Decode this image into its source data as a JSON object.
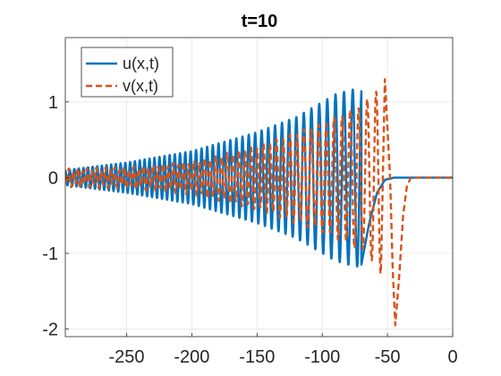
{
  "chart_data": {
    "type": "line",
    "title": "t=10",
    "xlabel": "",
    "ylabel": "",
    "xlim": [
      -297,
      0
    ],
    "ylim": [
      -2.1,
      1.85
    ],
    "xticks": [
      -250,
      -200,
      -150,
      -100,
      -50,
      0
    ],
    "xtick_labels": [
      "-250",
      "-200",
      "-150",
      "-100",
      "-50",
      "0"
    ],
    "yticks": [
      -2,
      -1,
      0,
      1
    ],
    "ytick_labels": [
      "-2",
      "-1",
      "0",
      "1"
    ],
    "grid": true,
    "legend_position": "top-left",
    "series": [
      {
        "name": "u(x,t)",
        "color": "#0072BD",
        "style": "solid",
        "envelope": {
          "x": [
            -297,
            -250,
            -200,
            -150,
            -120,
            -100,
            -90,
            -80,
            -75,
            -70
          ],
          "amplitude": [
            0.1,
            0.2,
            0.35,
            0.6,
            0.8,
            1.0,
            1.1,
            1.15,
            1.17,
            1.18
          ]
        },
        "wavelength_left": 3.5,
        "wavelength_right": 7.0,
        "front": [
          {
            "x": -70,
            "y": -1.15
          },
          {
            "x": -64,
            "y": -0.6
          },
          {
            "x": -58,
            "y": -0.2
          },
          {
            "x": -52,
            "y": -0.03
          },
          {
            "x": -45,
            "y": 0
          },
          {
            "x": 0,
            "y": 0
          }
        ]
      },
      {
        "name": "v(x,t)",
        "color": "#D95319",
        "style": "dashed",
        "envelope": {
          "x": [
            -297,
            -250,
            -200,
            -150,
            -100,
            -70,
            -60,
            -55
          ],
          "amplitude": [
            0.1,
            0.12,
            0.2,
            0.4,
            0.7,
            0.95,
            1.1,
            1.3
          ]
        },
        "wavelength_left": 3.5,
        "wavelength_right": 7.0,
        "front": [
          {
            "x": -52,
            "y": 1.3
          },
          {
            "x": -48,
            "y": 0.0
          },
          {
            "x": -46,
            "y": -1.2
          },
          {
            "x": -44,
            "y": -1.95
          },
          {
            "x": -41,
            "y": -1.3
          },
          {
            "x": -38,
            "y": -0.5
          },
          {
            "x": -35,
            "y": -0.1
          },
          {
            "x": -32,
            "y": 0
          },
          {
            "x": 0,
            "y": 0
          }
        ]
      }
    ]
  }
}
